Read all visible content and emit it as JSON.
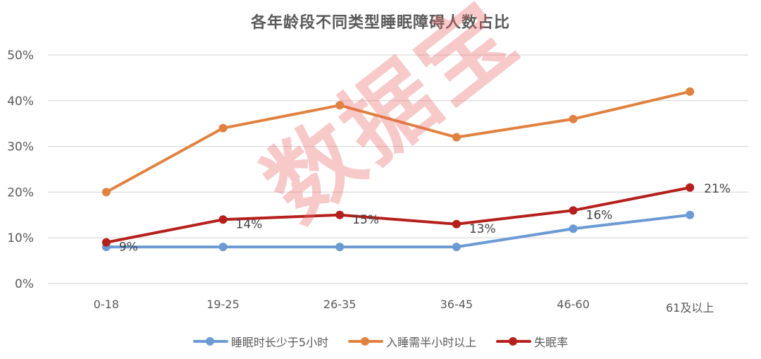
{
  "chart_data": {
    "type": "line",
    "title": "各年龄段不同类型睡眠障碍人数占比",
    "xlabel": "",
    "ylabel": "",
    "categories": [
      "0-18",
      "19-25",
      "26-35",
      "36-45",
      "46-60",
      "61及以上"
    ],
    "ylim": [
      0,
      50
    ],
    "yticks": [
      "0%",
      "10%",
      "20%",
      "30%",
      "40%",
      "50%"
    ],
    "grid": true,
    "legend_position": "bottom",
    "series": [
      {
        "name": "睡眠时长少于5小时",
        "color": "#6b9bd2",
        "values": [
          8,
          8,
          8,
          8,
          12,
          15
        ],
        "show_labels": false
      },
      {
        "name": "入睡需半小时以上",
        "color": "#e0823f",
        "values": [
          20,
          34,
          39,
          32,
          36,
          42
        ],
        "show_labels": false
      },
      {
        "name": "失眠率",
        "color": "#b5201c",
        "values": [
          9,
          14,
          15,
          13,
          16,
          21
        ],
        "show_labels": true,
        "labels": [
          "9%",
          "14%",
          "15%",
          "13%",
          "16%",
          "21%"
        ]
      }
    ]
  },
  "watermark": "数据宝"
}
